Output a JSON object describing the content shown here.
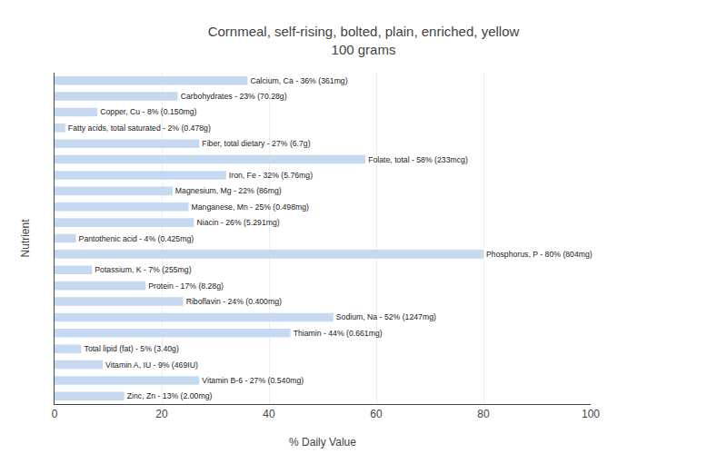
{
  "chart_data": {
    "type": "bar",
    "orientation": "horizontal",
    "title": "Cornmeal, self-rising, bolted, plain, enriched, yellow\n100 grams",
    "xlabel": "% Daily Value",
    "ylabel": "Nutrient",
    "categories": [
      "Calcium, Ca - 36% (361mg)",
      "Carbohydrates - 23% (70.28g)",
      "Copper, Cu - 8% (0.150mg)",
      "Fatty acids, total saturated - 2% (0.478g)",
      "Fiber, total dietary - 27% (6.7g)",
      "Folate, total - 58% (233mcg)",
      "Iron, Fe - 32% (5.76mg)",
      "Magnesium, Mg - 22% (86mg)",
      "Manganese, Mn - 25% (0.498mg)",
      "Niacin - 26% (5.291mg)",
      "Pantothenic acid - 4% (0.425mg)",
      "Phosphorus, P - 80% (804mg)",
      "Potassium, K - 7% (255mg)",
      "Protein - 17% (8.28g)",
      "Riboflavin - 24% (0.400mg)",
      "Sodium, Na - 52% (1247mg)",
      "Thiamin - 44% (0.661mg)",
      "Total lipid (fat) - 5% (3.40g)",
      "Vitamin A, IU - 9% (469IU)",
      "Vitamin B-6 - 27% (0.540mg)",
      "Zinc, Zn - 13% (2.00mg)"
    ],
    "values": [
      36,
      23,
      8,
      2,
      27,
      58,
      32,
      22,
      25,
      26,
      4,
      80,
      7,
      17,
      24,
      52,
      44,
      5,
      9,
      27,
      13
    ],
    "color": "#c5d9f1",
    "xlim": [
      0,
      100
    ],
    "xticks": [
      0,
      20,
      40,
      60,
      80,
      100
    ],
    "grid": true,
    "tick_labels": "x"
  }
}
